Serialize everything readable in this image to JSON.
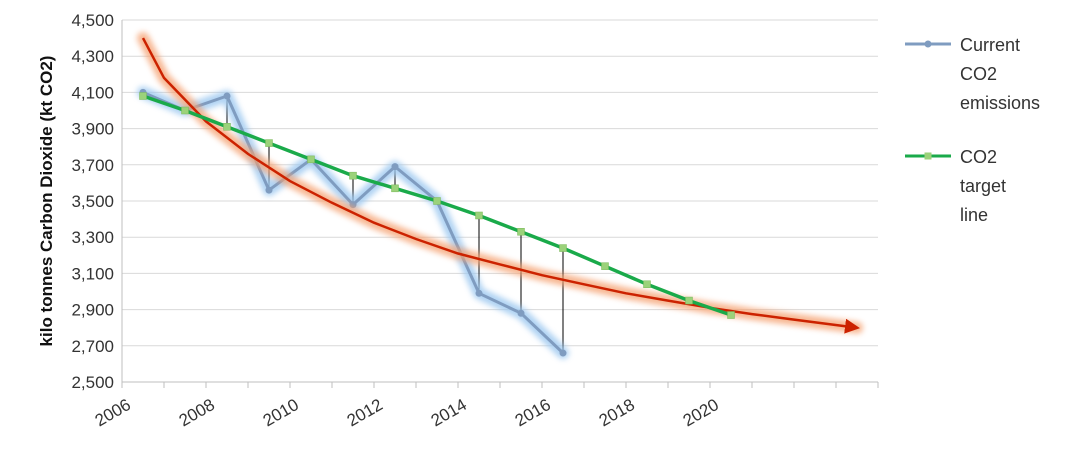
{
  "chart_data": {
    "type": "line",
    "ylabel": "kilo tonnes Carbon Dioxide (kt CO2)",
    "xlabel": "",
    "xlim": [
      2006,
      2024
    ],
    "ylim": [
      2500,
      4500
    ],
    "x_ticks": [
      2006,
      2008,
      2010,
      2012,
      2014,
      2016,
      2018,
      2020
    ],
    "x_tick_labels": [
      "2006",
      "2008",
      "2010",
      "2012",
      "2014",
      "2016",
      "2018",
      "2020"
    ],
    "y_ticks": [
      2500,
      2700,
      2900,
      3100,
      3300,
      3500,
      3700,
      3900,
      4100,
      4300,
      4500
    ],
    "y_tick_labels": [
      "2,500",
      "2,700",
      "2,900",
      "3,100",
      "3,300",
      "3,500",
      "3,700",
      "3,900",
      "4,100",
      "4,300",
      "4,500"
    ],
    "grid": "horizontal",
    "legend_position": "right",
    "series": [
      {
        "name": "Current CO2 emissions",
        "name_lines": [
          "Current",
          "CO2",
          "emissions"
        ],
        "color": "#7f9cc0",
        "highlight_color": "#9cc8f0",
        "x": [
          2006.5,
          2007.5,
          2008.5,
          2009.5,
          2010.5,
          2011.5,
          2012.5,
          2013.5,
          2014.5,
          2015.5,
          2016.5
        ],
        "values": [
          4100,
          4000,
          4080,
          3560,
          3730,
          3480,
          3690,
          3500,
          2990,
          2880,
          2660
        ]
      },
      {
        "name": "CO2 target line",
        "name_lines": [
          "CO2",
          "target",
          "line"
        ],
        "color": "#1aaa4a",
        "marker_color": "#9bd27a",
        "x": [
          2006.5,
          2007.5,
          2008.5,
          2009.5,
          2010.5,
          2011.5,
          2012.5,
          2013.5,
          2014.5,
          2015.5,
          2016.5,
          2017.5,
          2018.5,
          2019.5,
          2020.5
        ],
        "values": [
          4080,
          4000,
          3910,
          3820,
          3730,
          3640,
          3570,
          3500,
          3420,
          3330,
          3240,
          3140,
          3040,
          2950,
          2870
        ]
      }
    ],
    "annotations": [
      {
        "type": "trend-curve-arrow",
        "color": "#cc2200",
        "glow_color": "#f5a070",
        "x": [
          2006.5,
          2007,
          2008,
          2009,
          2010,
          2011,
          2012,
          2013,
          2014,
          2015,
          2016,
          2017,
          2018,
          2019,
          2020,
          2021,
          2022,
          2023.5
        ],
        "values": [
          4400,
          4180,
          3940,
          3760,
          3610,
          3490,
          3380,
          3290,
          3210,
          3150,
          3090,
          3040,
          2990,
          2950,
          2910,
          2875,
          2845,
          2800
        ]
      },
      {
        "type": "gap-connectors",
        "color": "#000000",
        "x": [
          2008.5,
          2009.5,
          2011.5,
          2012.5,
          2014.5,
          2015.5,
          2016.5
        ]
      }
    ]
  }
}
